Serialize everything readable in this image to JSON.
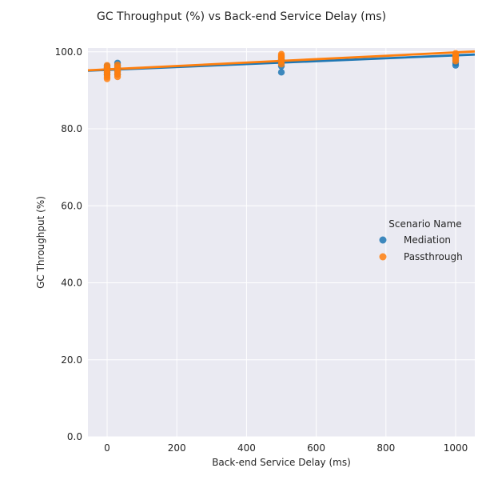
{
  "chart_data": {
    "type": "scatter",
    "title": "GC Throughput (%) vs Back-end Service Delay (ms)",
    "xlabel": "Back-end Service Delay (ms)",
    "ylabel": "GC Throughput (%)",
    "xlim": [
      -55,
      1055
    ],
    "ylim": [
      0,
      101
    ],
    "xticks": [
      0,
      200,
      400,
      600,
      800,
      1000
    ],
    "xtick_labels": [
      "0",
      "200",
      "400",
      "600",
      "800",
      "1000"
    ],
    "yticks": [
      0,
      20,
      40,
      60,
      80,
      100
    ],
    "ytick_labels": [
      "0.0",
      "20.0",
      "40.0",
      "60.0",
      "80.0",
      "100.0"
    ],
    "grid": true,
    "legend_title": "Scenario Name",
    "legend_position": "right",
    "series": [
      {
        "name": "Mediation",
        "color": "#1f77b4",
        "points": [
          [
            0,
            94.0
          ],
          [
            0,
            94.6
          ],
          [
            0,
            95.2
          ],
          [
            0,
            95.8
          ],
          [
            0,
            96.3
          ],
          [
            30,
            94.2
          ],
          [
            30,
            95.0
          ],
          [
            30,
            95.7
          ],
          [
            30,
            96.4
          ],
          [
            30,
            97.1
          ],
          [
            500,
            94.7
          ],
          [
            500,
            96.3
          ],
          [
            500,
            97.2
          ],
          [
            500,
            98.0
          ],
          [
            500,
            98.7
          ],
          [
            1000,
            96.5
          ],
          [
            1000,
            97.1
          ],
          [
            1000,
            97.8
          ],
          [
            1000,
            98.6
          ],
          [
            1000,
            99.2
          ]
        ],
        "regression": [
          [
            -55,
            95.1
          ],
          [
            1055,
            99.3
          ]
        ]
      },
      {
        "name": "Passthrough",
        "color": "#ff7f0e",
        "points": [
          [
            0,
            93.0
          ],
          [
            0,
            93.5
          ],
          [
            0,
            94.2
          ],
          [
            0,
            94.8
          ],
          [
            0,
            95.3
          ],
          [
            0,
            95.9
          ],
          [
            0,
            96.5
          ],
          [
            30,
            93.5
          ],
          [
            30,
            94.1
          ],
          [
            30,
            94.8
          ],
          [
            30,
            95.4
          ],
          [
            30,
            96.0
          ],
          [
            30,
            96.6
          ],
          [
            500,
            96.8
          ],
          [
            500,
            97.5
          ],
          [
            500,
            98.1
          ],
          [
            500,
            98.6
          ],
          [
            500,
            99.0
          ],
          [
            500,
            99.4
          ],
          [
            1000,
            97.6
          ],
          [
            1000,
            98.2
          ],
          [
            1000,
            98.7
          ],
          [
            1000,
            99.2
          ],
          [
            1000,
            99.6
          ]
        ],
        "regression": [
          [
            -55,
            95.2
          ],
          [
            1055,
            100.1
          ]
        ]
      }
    ]
  }
}
